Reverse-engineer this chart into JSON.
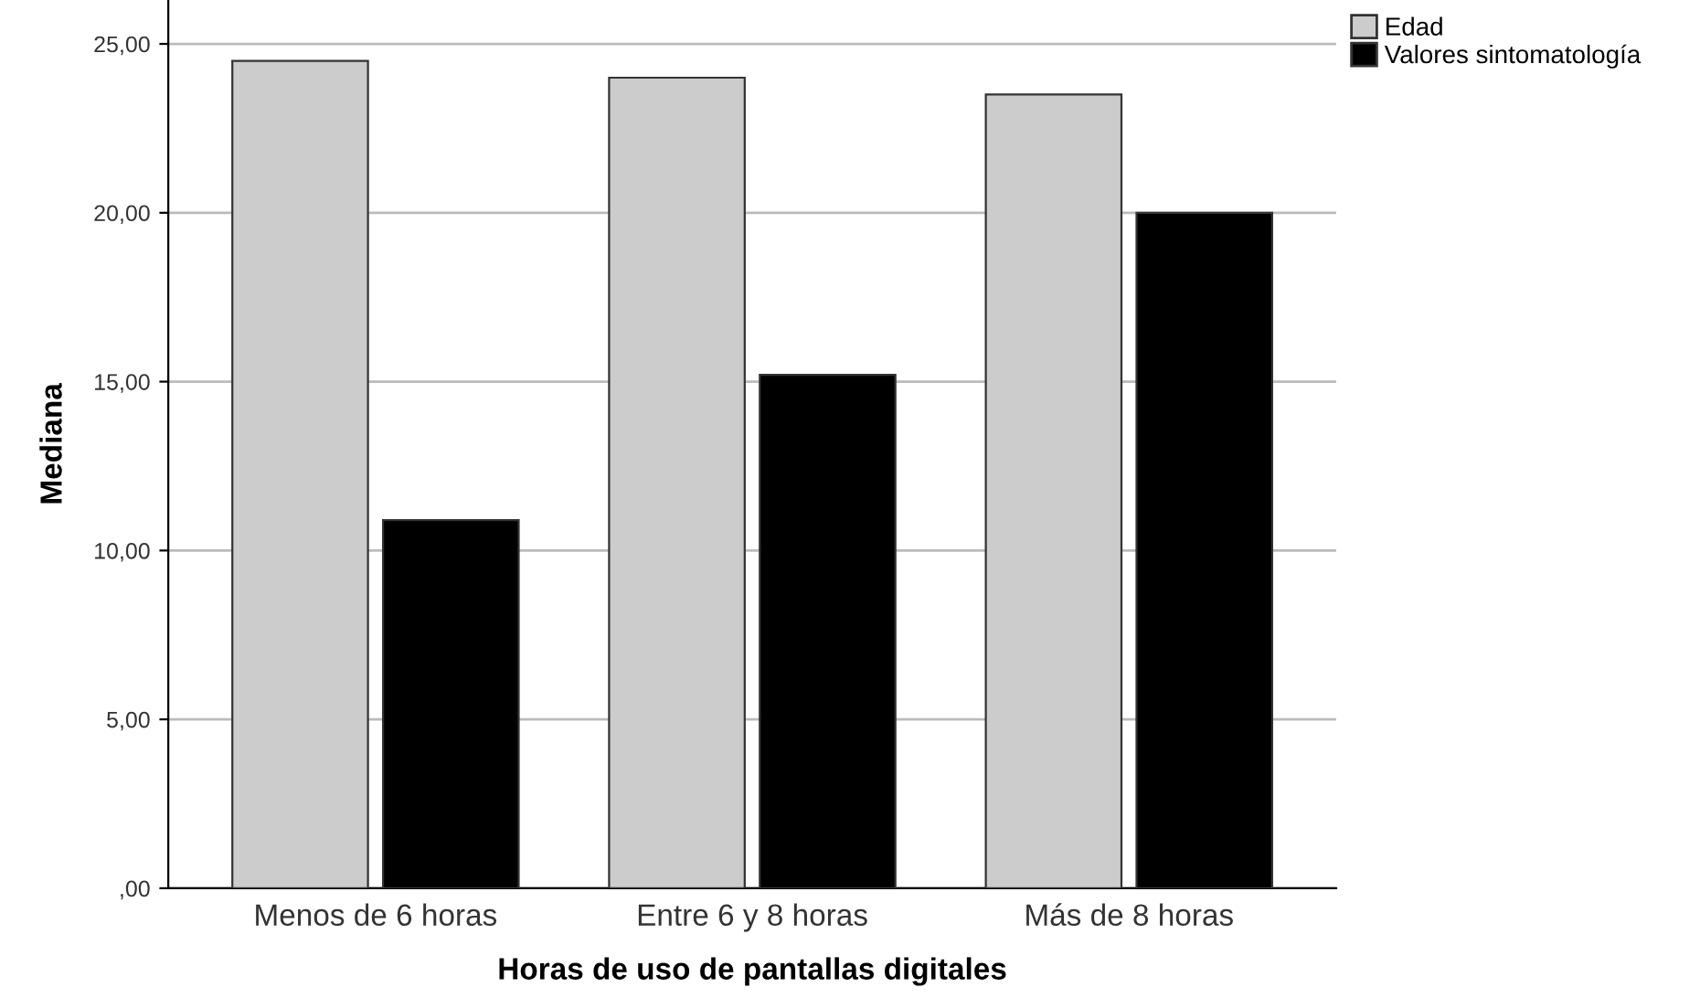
{
  "chart_data": {
    "type": "bar",
    "xlabel": "Horas de uso de pantallas digitales",
    "ylabel": "Mediana",
    "categories": [
      "Menos de 6 horas",
      "Entre 6 y 8 horas",
      "Más de 8 horas"
    ],
    "series": [
      {
        "name": "Edad",
        "color": "#cccccc",
        "values": [
          24.5,
          24.0,
          23.5
        ]
      },
      {
        "name": "Valores sintomatología",
        "color": "#000000",
        "values": [
          10.9,
          15.2,
          20.0
        ]
      }
    ],
    "ylim": [
      0,
      26.3
    ],
    "yticks": [
      {
        "value": 0,
        "label": ",00"
      },
      {
        "value": 5,
        "label": "5,00"
      },
      {
        "value": 10,
        "label": "10,00"
      },
      {
        "value": 15,
        "label": "15,00"
      },
      {
        "value": 20,
        "label": "20,00"
      },
      {
        "value": 25,
        "label": "25,00"
      }
    ],
    "grid": "y",
    "legend": "top right"
  }
}
